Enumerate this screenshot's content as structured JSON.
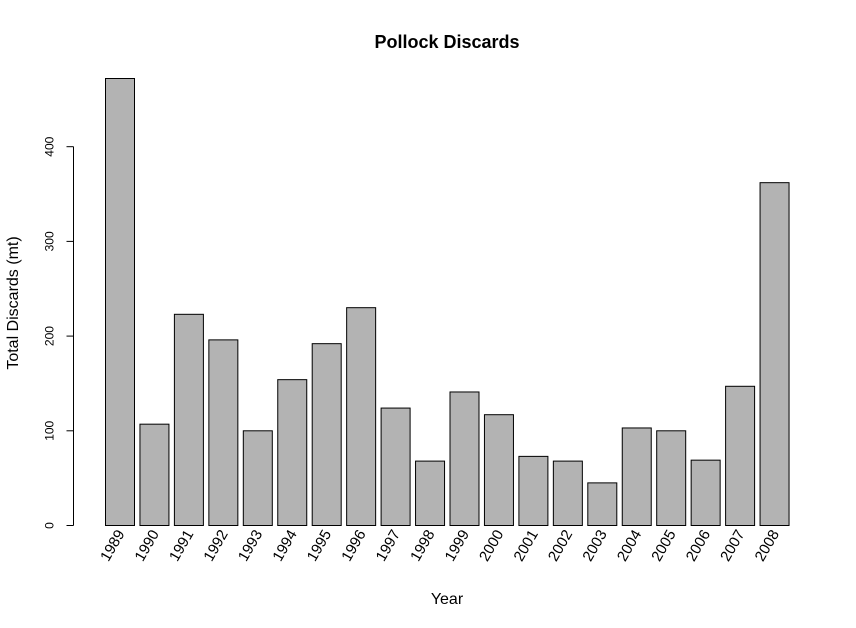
{
  "chart_data": {
    "type": "bar",
    "title": "Pollock Discards",
    "xlabel": "Year",
    "ylabel": "Total Discards (mt)",
    "categories": [
      "1989",
      "1990",
      "1991",
      "1992",
      "1993",
      "1994",
      "1995",
      "1996",
      "1997",
      "1998",
      "1999",
      "2000",
      "2001",
      "2002",
      "2003",
      "2004",
      "2005",
      "2006",
      "2007",
      "2008"
    ],
    "values": [
      472,
      107,
      223,
      196,
      100,
      154,
      192,
      230,
      124,
      68,
      141,
      117,
      73,
      68,
      45,
      103,
      100,
      69,
      147,
      362
    ],
    "yticks": [
      0,
      100,
      200,
      300,
      400
    ],
    "ylim": [
      0,
      472
    ],
    "bar_color": "#b3b3b3",
    "bar_border": "#000000",
    "grid": false
  }
}
